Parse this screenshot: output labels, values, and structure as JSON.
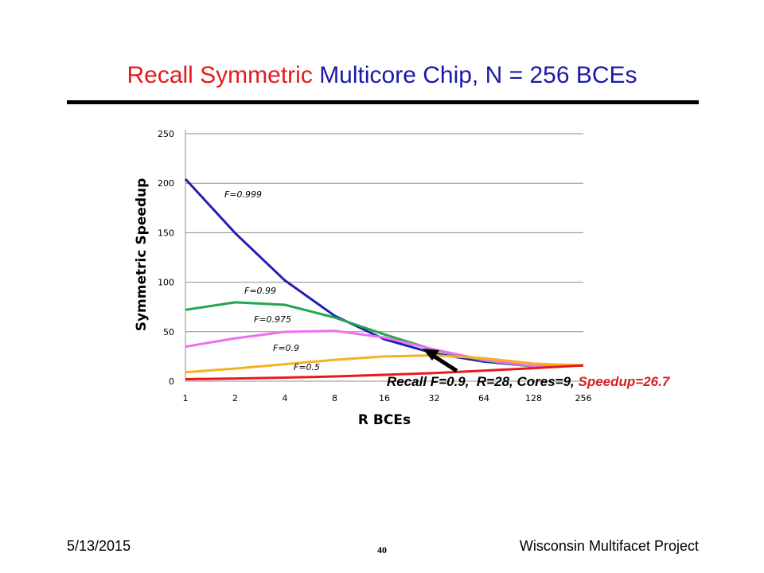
{
  "slide": {
    "title_part1": "Recall Symmetric",
    "title_part2": "Multicore Chip, N = 256 BCEs",
    "footer_date": "5/13/2015",
    "footer_page": "40",
    "footer_project": "Wisconsin Multifacet Project",
    "recall_text": "Recall F=0.9,  R=28, Cores=9, ",
    "recall_speedup": "Speedup=26.7"
  },
  "chart_data": {
    "type": "line",
    "xlabel": "R BCEs",
    "ylabel": "Symmetric Speedup",
    "x_scale": "log2",
    "categories": [
      "1",
      "2",
      "4",
      "8",
      "16",
      "32",
      "64",
      "128",
      "256"
    ],
    "ylim": [
      0,
      250
    ],
    "yticks": [
      0,
      50,
      100,
      150,
      200,
      250
    ],
    "grid": true,
    "series": [
      {
        "name": "F=0.999",
        "color": "#1f1fb4",
        "x": [
          1,
          2,
          4,
          8,
          16,
          32,
          64,
          128,
          256
        ],
        "values": [
          204.3,
          149.6,
          101.8,
          66.1,
          42.4,
          28.1,
          19.8,
          15.1,
          16.0
        ]
      },
      {
        "name": "F=0.99",
        "color": "#1fa84a",
        "x": [
          1,
          2,
          4,
          8,
          16,
          32,
          64,
          128,
          256
        ],
        "values": [
          72.1,
          79.7,
          77.2,
          64.3,
          47.3,
          31.6,
          20.8,
          14.8,
          16.0
        ]
      },
      {
        "name": "F=0.975",
        "color": "#ee6fee",
        "x": [
          1,
          2,
          4,
          8,
          16,
          32,
          64,
          128,
          256
        ],
        "values": [
          34.9,
          43.3,
          49.8,
          50.9,
          44.1,
          32.1,
          21.5,
          15.3,
          16.0
        ]
      },
      {
        "name": "F=0.9",
        "color": "#f5b21b",
        "x": [
          1,
          2,
          4,
          8,
          16,
          32,
          64,
          128,
          256
        ],
        "values": [
          9.1,
          12.8,
          17.2,
          21.6,
          25.0,
          26.1,
          23.2,
          17.8,
          16.0
        ]
      },
      {
        "name": "F=0.5",
        "color": "#e8191c",
        "x": [
          1,
          2,
          4,
          8,
          16,
          32,
          64,
          128,
          256
        ],
        "values": [
          2.0,
          2.7,
          3.6,
          4.8,
          6.4,
          8.3,
          10.7,
          13.2,
          16.0
        ]
      }
    ]
  }
}
